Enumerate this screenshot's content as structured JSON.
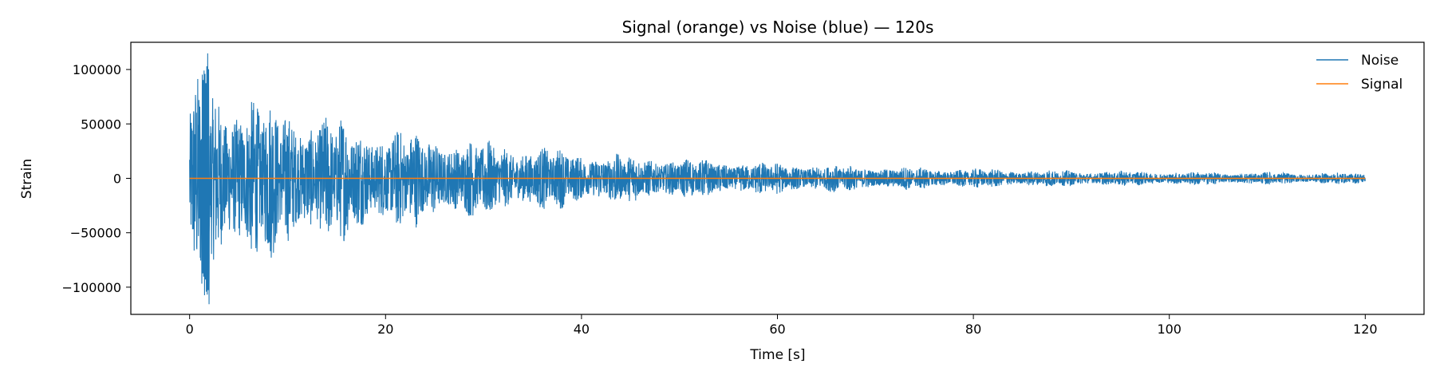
{
  "chart_data": {
    "type": "line",
    "title": "Signal (orange) vs Noise (blue) — 120s",
    "xlabel": "Time [s]",
    "ylabel": "Strain",
    "xlim": [
      -6,
      126
    ],
    "ylim": [
      -125000,
      125000
    ],
    "x_ticks": [
      0,
      20,
      40,
      60,
      80,
      100,
      120
    ],
    "x_tick_labels": [
      "0",
      "20",
      "40",
      "60",
      "80",
      "100",
      "120"
    ],
    "y_ticks": [
      100000,
      50000,
      0,
      -50000,
      -100000
    ],
    "y_tick_labels": [
      "100000",
      "50000",
      "0",
      "−50000",
      "−100000"
    ],
    "grid": false,
    "legend_position": "top-right",
    "series": [
      {
        "name": "Noise",
        "color": "#1f77b4",
        "x_range": [
          0,
          120
        ],
        "envelope": {
          "peak_at_start": 100000,
          "max_spike": 115000,
          "min_spike": -118000,
          "amplitude_at_20s": 40000,
          "amplitude_at_40s": 25000,
          "amplitude_at_60s": 12000,
          "amplitude_at_80s": 7000,
          "amplitude_at_120s": 4000
        }
      },
      {
        "name": "Signal",
        "color": "#ff7f0e",
        "x": [
          0,
          120
        ],
        "y": [
          0,
          0
        ]
      }
    ]
  }
}
